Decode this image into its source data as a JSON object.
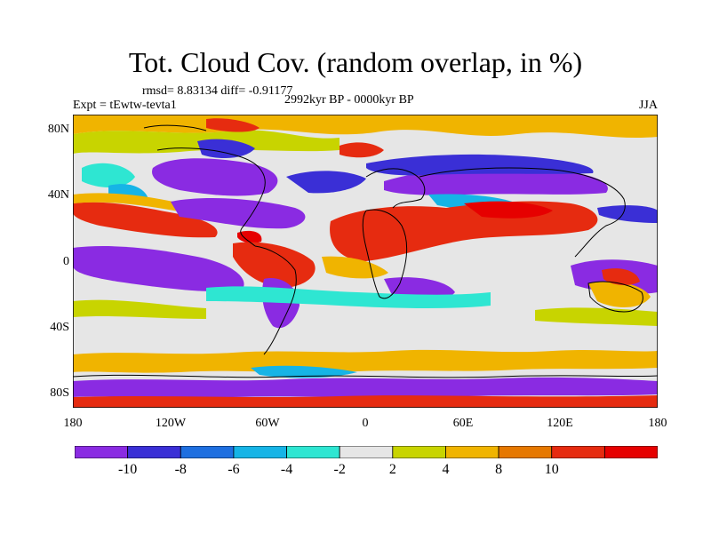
{
  "title": "Tot. Cloud Cov. (random overlap, in %)",
  "stats": "rmsd= 8.83134 diff= -0.91177",
  "experiment": "Expt = tEwtw-tevta1",
  "period": "2992kyr BP - 0000kyr BP",
  "season": "JJA",
  "lat_labels": [
    "80N",
    "40N",
    "0",
    "40S",
    "80S"
  ],
  "lon_labels": [
    "180",
    "120W",
    "60W",
    "0",
    "60E",
    "120E",
    "180"
  ],
  "colorbar": {
    "labels": [
      "-10",
      "-8",
      "-6",
      "-4",
      "-2",
      "2",
      "4",
      "8",
      "10"
    ],
    "colors": [
      "#8a2be2",
      "#3a2fd6",
      "#1e6fe0",
      "#16b4e6",
      "#2ee6d2",
      "#e6e6e6",
      "#c8d400",
      "#f0b400",
      "#e67800",
      "#e62b10",
      "#e60000"
    ]
  }
}
